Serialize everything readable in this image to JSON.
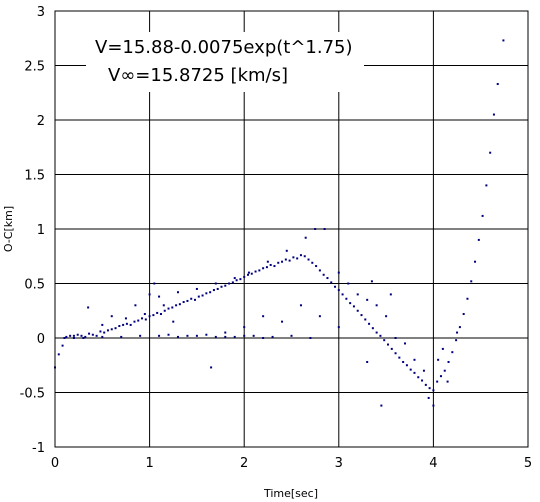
{
  "chart_data": {
    "type": "scatter",
    "xlabel": "Time[sec]",
    "ylabel": "O-C[km]",
    "xlim": [
      0,
      5
    ],
    "ylim": [
      -1,
      3
    ],
    "xticks": [
      "0",
      "1",
      "2",
      "3",
      "4",
      "5"
    ],
    "yticks": [
      "-1",
      "-0.5",
      "0",
      "0.5",
      "1",
      "1.5",
      "2",
      "2.5",
      "3"
    ],
    "grid": true,
    "marker_color": "#00007f",
    "annotations": [
      "V=15.88-0.0075exp(t^1.75)",
      "V∞=15.8725  [km/s]"
    ],
    "series": [
      {
        "points": [
          [
            0.0,
            -0.27
          ],
          [
            0.04,
            -0.15
          ],
          [
            0.08,
            -0.07
          ],
          [
            0.12,
            0.01
          ],
          [
            0.16,
            0.02
          ],
          [
            0.2,
            0.0
          ],
          [
            0.24,
            0.03
          ],
          [
            0.28,
            0.02
          ],
          [
            0.32,
            0.01
          ],
          [
            0.36,
            0.04
          ],
          [
            0.4,
            0.03
          ],
          [
            0.44,
            0.02
          ],
          [
            0.48,
            0.06
          ],
          [
            0.52,
            0.05
          ],
          [
            0.56,
            0.07
          ],
          [
            0.6,
            0.08
          ],
          [
            0.64,
            0.09
          ],
          [
            0.68,
            0.11
          ],
          [
            0.72,
            0.12
          ],
          [
            0.76,
            0.13
          ],
          [
            0.8,
            0.12
          ],
          [
            0.84,
            0.15
          ],
          [
            0.88,
            0.16
          ],
          [
            0.92,
            0.18
          ],
          [
            0.96,
            0.17
          ],
          [
            1.0,
            0.2
          ],
          [
            1.04,
            0.21
          ],
          [
            1.08,
            0.23
          ],
          [
            1.12,
            0.22
          ],
          [
            1.16,
            0.25
          ],
          [
            1.2,
            0.27
          ],
          [
            1.24,
            0.28
          ],
          [
            1.28,
            0.3
          ],
          [
            1.32,
            0.31
          ],
          [
            1.36,
            0.33
          ],
          [
            1.4,
            0.34
          ],
          [
            1.44,
            0.36
          ],
          [
            1.48,
            0.35
          ],
          [
            1.52,
            0.38
          ],
          [
            1.56,
            0.39
          ],
          [
            1.6,
            0.41
          ],
          [
            1.64,
            0.42
          ],
          [
            1.68,
            0.44
          ],
          [
            1.72,
            0.45
          ],
          [
            1.76,
            0.47
          ],
          [
            1.8,
            0.48
          ],
          [
            1.84,
            0.5
          ],
          [
            1.88,
            0.51
          ],
          [
            1.92,
            0.53
          ],
          [
            1.96,
            0.54
          ],
          [
            2.0,
            0.56
          ],
          [
            2.04,
            0.58
          ],
          [
            2.08,
            0.59
          ],
          [
            2.12,
            0.61
          ],
          [
            2.16,
            0.62
          ],
          [
            2.2,
            0.64
          ],
          [
            2.24,
            0.65
          ],
          [
            2.28,
            0.67
          ],
          [
            2.32,
            0.66
          ],
          [
            2.36,
            0.69
          ],
          [
            2.4,
            0.7
          ],
          [
            2.44,
            0.72
          ],
          [
            2.48,
            0.71
          ],
          [
            2.52,
            0.74
          ],
          [
            2.56,
            0.73
          ],
          [
            2.6,
            0.76
          ],
          [
            2.64,
            0.75
          ],
          [
            2.68,
            0.72
          ],
          [
            2.72,
            0.69
          ],
          [
            2.76,
            0.66
          ],
          [
            2.8,
            0.62
          ],
          [
            2.84,
            0.58
          ],
          [
            2.88,
            0.55
          ],
          [
            2.92,
            0.51
          ],
          [
            2.96,
            0.47
          ],
          [
            3.0,
            0.44
          ],
          [
            3.04,
            0.4
          ],
          [
            3.08,
            0.36
          ],
          [
            3.12,
            0.32
          ],
          [
            3.16,
            0.29
          ],
          [
            3.2,
            0.25
          ],
          [
            3.24,
            0.21
          ],
          [
            3.28,
            0.17
          ],
          [
            3.32,
            0.13
          ],
          [
            3.36,
            0.09
          ],
          [
            3.4,
            0.05
          ],
          [
            3.44,
            0.02
          ],
          [
            3.48,
            -0.02
          ],
          [
            3.52,
            -0.06
          ],
          [
            3.56,
            -0.1
          ],
          [
            3.6,
            -0.14
          ],
          [
            3.64,
            -0.18
          ],
          [
            3.68,
            -0.22
          ],
          [
            3.72,
            -0.25
          ],
          [
            3.76,
            -0.29
          ],
          [
            3.8,
            -0.32
          ],
          [
            3.84,
            -0.36
          ],
          [
            3.88,
            -0.39
          ],
          [
            3.92,
            -0.43
          ],
          [
            3.96,
            -0.46
          ],
          [
            4.0,
            -0.48
          ],
          [
            4.04,
            -0.4
          ],
          [
            4.08,
            -0.35
          ],
          [
            4.12,
            -0.3
          ],
          [
            4.16,
            -0.22
          ],
          [
            4.2,
            -0.13
          ],
          [
            4.24,
            -0.02
          ],
          [
            4.28,
            0.1
          ],
          [
            4.32,
            0.22
          ],
          [
            4.36,
            0.36
          ],
          [
            4.4,
            0.52
          ],
          [
            4.44,
            0.7
          ],
          [
            4.48,
            0.9
          ],
          [
            4.52,
            1.12
          ],
          [
            4.56,
            1.4
          ],
          [
            4.6,
            1.7
          ],
          [
            4.64,
            2.05
          ],
          [
            4.68,
            2.33
          ],
          [
            4.74,
            2.73
          ],
          [
            0.1,
            0.0
          ],
          [
            0.3,
            0.0
          ],
          [
            0.5,
            0.01
          ],
          [
            0.7,
            0.01
          ],
          [
            0.9,
            0.02
          ],
          [
            1.1,
            0.02
          ],
          [
            1.3,
            0.01
          ],
          [
            1.5,
            0.02
          ],
          [
            1.7,
            0.01
          ],
          [
            1.9,
            0.01
          ],
          [
            2.1,
            0.02
          ],
          [
            2.3,
            0.01
          ],
          [
            2.5,
            0.02
          ],
          [
            2.7,
            0.0
          ],
          [
            1.2,
            0.03
          ],
          [
            1.4,
            0.02
          ],
          [
            1.6,
            0.03
          ],
          [
            1.8,
            0.01
          ],
          [
            2.0,
            0.02
          ],
          [
            2.2,
            0.0
          ],
          [
            1.0,
            0.4
          ],
          [
            1.1,
            0.38
          ],
          [
            1.3,
            0.42
          ],
          [
            1.5,
            0.45
          ],
          [
            1.7,
            0.5
          ],
          [
            1.9,
            0.55
          ],
          [
            2.05,
            0.6
          ],
          [
            2.25,
            0.7
          ],
          [
            2.45,
            0.8
          ],
          [
            2.65,
            0.92
          ],
          [
            2.75,
            1.0
          ],
          [
            2.85,
            1.0
          ],
          [
            3.0,
            0.6
          ],
          [
            3.1,
            0.5
          ],
          [
            3.2,
            0.4
          ],
          [
            3.3,
            0.35
          ],
          [
            3.35,
            0.52
          ],
          [
            3.4,
            0.3
          ],
          [
            3.5,
            0.2
          ],
          [
            3.55,
            0.4
          ],
          [
            3.6,
            0.0
          ],
          [
            3.7,
            -0.05
          ],
          [
            3.8,
            -0.2
          ],
          [
            3.9,
            -0.3
          ],
          [
            3.95,
            -0.55
          ],
          [
            4.0,
            -0.62
          ],
          [
            4.05,
            -0.2
          ],
          [
            4.1,
            -0.1
          ],
          [
            4.15,
            -0.4
          ],
          [
            4.25,
            0.05
          ],
          [
            3.45,
            -0.62
          ],
          [
            3.3,
            -0.22
          ],
          [
            3.0,
            0.1
          ],
          [
            2.8,
            0.2
          ],
          [
            2.6,
            0.3
          ],
          [
            2.4,
            0.15
          ],
          [
            2.2,
            0.2
          ],
          [
            2.0,
            0.1
          ],
          [
            1.8,
            0.05
          ],
          [
            1.65,
            -0.27
          ],
          [
            0.2,
            0.02
          ],
          [
            0.35,
            0.28
          ],
          [
            0.5,
            0.12
          ],
          [
            0.6,
            0.2
          ],
          [
            0.75,
            0.18
          ],
          [
            0.85,
            0.3
          ],
          [
            0.95,
            0.22
          ],
          [
            1.05,
            0.5
          ],
          [
            1.15,
            0.3
          ],
          [
            1.25,
            0.15
          ]
        ]
      }
    ]
  }
}
